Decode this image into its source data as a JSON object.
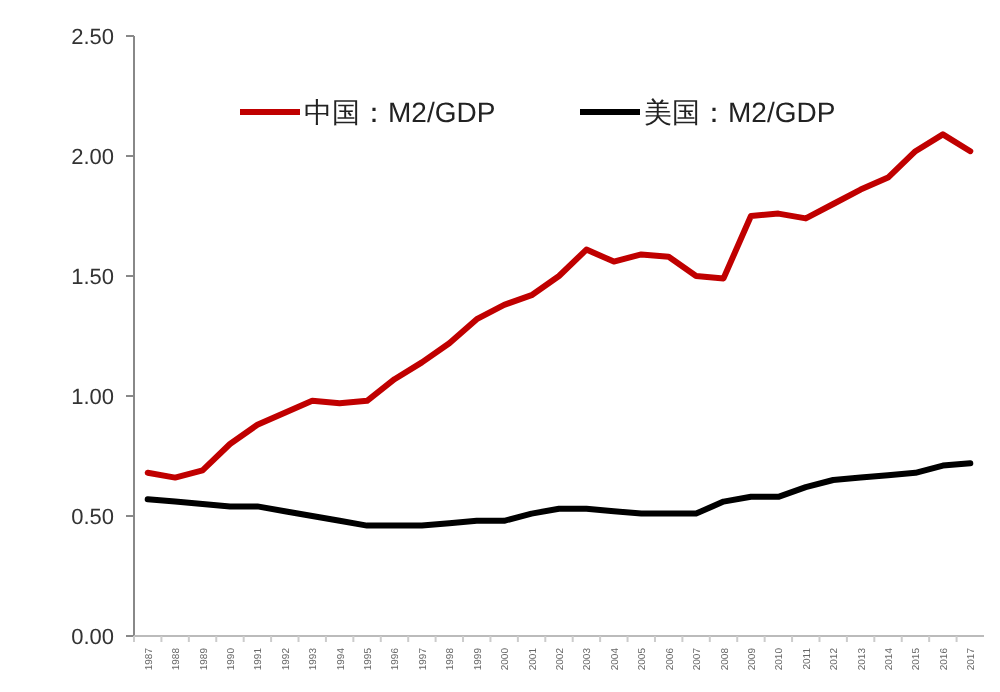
{
  "chart_data": {
    "type": "line",
    "categories": [
      "1987",
      "1988",
      "1989",
      "1990",
      "1991",
      "1992",
      "1993",
      "1994",
      "1995",
      "1996",
      "1997",
      "1998",
      "1999",
      "2000",
      "2001",
      "2002",
      "2003",
      "2004",
      "2005",
      "2006",
      "2007",
      "2008",
      "2009",
      "2010",
      "2011",
      "2012",
      "2013",
      "2014",
      "2015",
      "2016",
      "2017"
    ],
    "series": [
      {
        "name": "中国：M2/GDP",
        "color": "#c00000",
        "values": [
          0.68,
          0.66,
          0.69,
          0.8,
          0.88,
          0.93,
          0.98,
          0.97,
          0.98,
          1.07,
          1.14,
          1.22,
          1.32,
          1.38,
          1.42,
          1.5,
          1.61,
          1.56,
          1.59,
          1.58,
          1.5,
          1.49,
          1.75,
          1.76,
          1.74,
          1.8,
          1.86,
          1.91,
          2.02,
          2.09,
          2.02
        ]
      },
      {
        "name": "美国：M2/GDP",
        "color": "#000000",
        "values": [
          0.57,
          0.56,
          0.55,
          0.54,
          0.54,
          0.52,
          0.5,
          0.48,
          0.46,
          0.46,
          0.46,
          0.47,
          0.48,
          0.48,
          0.51,
          0.53,
          0.53,
          0.52,
          0.51,
          0.51,
          0.51,
          0.56,
          0.58,
          0.58,
          0.62,
          0.65,
          0.66,
          0.67,
          0.68,
          0.71,
          0.72
        ]
      }
    ],
    "ylim": [
      0,
      2.5
    ],
    "yticks": [
      {
        "value": 0,
        "label": "0.00"
      },
      {
        "value": 0.5,
        "label": "0.50"
      },
      {
        "value": 1,
        "label": "1.00"
      },
      {
        "value": 1.5,
        "label": "1.50"
      },
      {
        "value": 2,
        "label": "2.00"
      },
      {
        "value": 2.5,
        "label": "2.50"
      }
    ],
    "legend": "top",
    "grid": false,
    "marker": "none",
    "line_style": "solid"
  }
}
